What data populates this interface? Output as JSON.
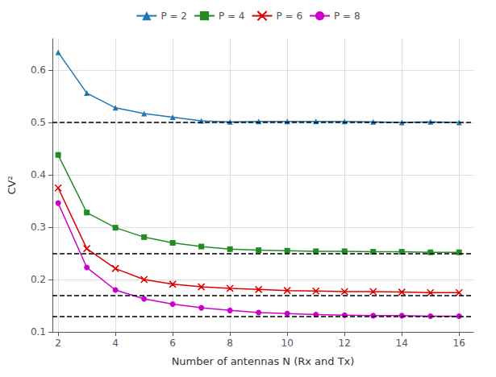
{
  "chart_data": {
    "type": "line",
    "xlabel": "Number of antennas N (Rx and Tx)",
    "ylabel": "CV²",
    "x": [
      2,
      3,
      4,
      5,
      6,
      7,
      8,
      9,
      10,
      11,
      12,
      13,
      14,
      15,
      16
    ],
    "series": [
      {
        "name": "P = 2",
        "color": "#1f77b4",
        "marker": "triangle",
        "values": [
          0.634,
          0.556,
          0.528,
          0.517,
          0.51,
          0.503,
          0.501,
          0.502,
          0.502,
          0.502,
          0.502,
          0.501,
          0.5,
          0.501,
          0.5
        ]
      },
      {
        "name": "P = 4",
        "color": "#228B22",
        "marker": "square",
        "values": [
          0.438,
          0.328,
          0.299,
          0.281,
          0.27,
          0.263,
          0.258,
          0.256,
          0.255,
          0.254,
          0.254,
          0.253,
          0.253,
          0.252,
          0.252
        ]
      },
      {
        "name": "P = 6",
        "color": "#dd0000",
        "marker": "x",
        "values": [
          0.375,
          0.259,
          0.221,
          0.2,
          0.191,
          0.186,
          0.183,
          0.181,
          0.179,
          0.178,
          0.177,
          0.177,
          0.176,
          0.175,
          0.175
        ]
      },
      {
        "name": "P = 8",
        "color": "#cc00cc",
        "marker": "circle",
        "values": [
          0.346,
          0.223,
          0.18,
          0.163,
          0.153,
          0.146,
          0.141,
          0.137,
          0.135,
          0.133,
          0.132,
          0.131,
          0.131,
          0.13,
          0.13
        ]
      }
    ],
    "hlines": [
      {
        "value": 0.5,
        "color": "#000000",
        "line_style": "dashed"
      },
      {
        "value": 0.25,
        "color": "#000000",
        "line_style": "dashed"
      },
      {
        "value": 0.1667,
        "color": "#000000",
        "line_style": "dashed"
      },
      {
        "value": 0.125,
        "color": "#000000",
        "line_style": "dashed"
      }
    ],
    "xlim": [
      1.8,
      16.5
    ],
    "ylim": [
      0.1,
      0.66
    ],
    "xticks": [
      2,
      4,
      6,
      8,
      10,
      12,
      14,
      16
    ],
    "yticks": [
      0.1,
      0.2,
      0.3,
      0.4,
      0.5,
      0.6
    ],
    "grid": true,
    "legend": "top"
  }
}
